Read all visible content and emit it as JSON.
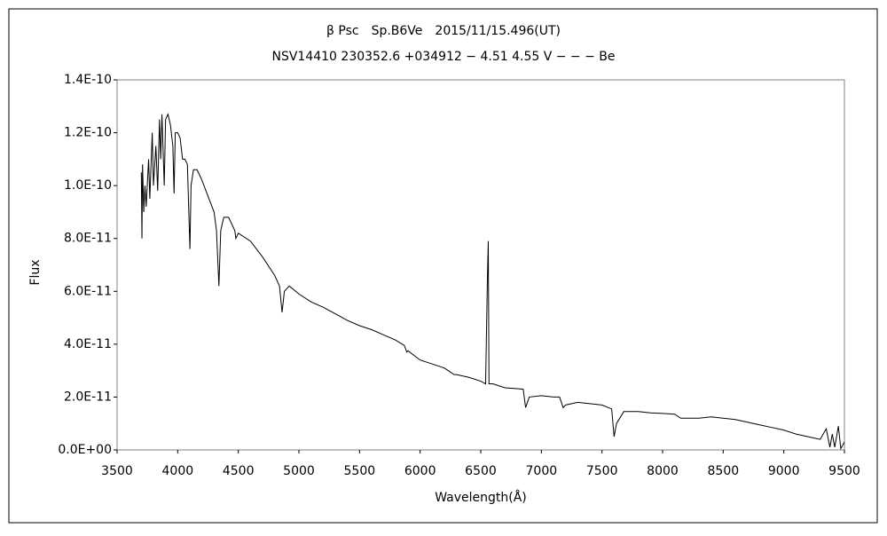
{
  "chart_data": {
    "type": "line",
    "title": "β Psc　Sp.B6Ve　2015/11/15.496(UT)",
    "subtitle": "NSV14410 230352.6 +034912 − 4.51 4.55 V − − − Be",
    "x_label": "Wavelength(Å)",
    "y_label": "Flux",
    "color": "#000000",
    "x": [
      3700,
      3705,
      3710,
      3720,
      3730,
      3740,
      3760,
      3770,
      3790,
      3800,
      3820,
      3835,
      3850,
      3860,
      3870,
      3889,
      3900,
      3920,
      3940,
      3960,
      3970,
      3980,
      4000,
      4020,
      4040,
      4060,
      4080,
      4101,
      4110,
      4130,
      4160,
      4200,
      4250,
      4300,
      4320,
      4340,
      4355,
      4380,
      4420,
      4471,
      4480,
      4500,
      4600,
      4700,
      4800,
      4840,
      4861,
      4880,
      4920,
      5000,
      5100,
      5200,
      5300,
      5400,
      5500,
      5600,
      5700,
      5800,
      5870,
      5890,
      5900,
      6000,
      6100,
      6200,
      6280,
      6300,
      6400,
      6500,
      6540,
      6555,
      6562,
      6568,
      6600,
      6700,
      6850,
      6870,
      6900,
      7000,
      7100,
      7150,
      7180,
      7200,
      7300,
      7400,
      7500,
      7580,
      7600,
      7620,
      7680,
      7800,
      7900,
      8000,
      8100,
      8150,
      8200,
      8300,
      8400,
      8500,
      8600,
      8700,
      8800,
      8900,
      9000,
      9100,
      9200,
      9300,
      9350,
      9380,
      9400,
      9420,
      9450,
      9470,
      9500
    ],
    "values": [
      1.05e-10,
      8e-11,
      1.08e-10,
      9e-11,
      1e-10,
      9.2e-11,
      1.1e-10,
      9.5e-11,
      1.2e-10,
      1e-10,
      1.15e-10,
      9.8e-11,
      1.25e-10,
      1.1e-10,
      1.27e-10,
      1e-10,
      1.25e-10,
      1.27e-10,
      1.23e-10,
      1.15e-10,
      9.7e-11,
      1.2e-10,
      1.2e-10,
      1.18e-10,
      1.1e-10,
      1.1e-10,
      1.08e-10,
      7.6e-11,
      1e-10,
      1.06e-10,
      1.06e-10,
      1.02e-10,
      9.6e-11,
      9e-11,
      8.3e-11,
      6.2e-11,
      8.3e-11,
      8.8e-11,
      8.8e-11,
      8.3e-11,
      8e-11,
      8.2e-11,
      7.9e-11,
      7.3e-11,
      6.6e-11,
      6.2e-11,
      5.2e-11,
      6e-11,
      6.2e-11,
      5.9e-11,
      5.6e-11,
      5.4e-11,
      5.15e-11,
      4.9e-11,
      4.7e-11,
      4.55e-11,
      4.35e-11,
      4.15e-11,
      3.95e-11,
      3.7e-11,
      3.75e-11,
      3.4e-11,
      3.25e-11,
      3.1e-11,
      2.85e-11,
      2.85e-11,
      2.75e-11,
      2.6e-11,
      2.5e-11,
      6.5e-11,
      7.9e-11,
      2.5e-11,
      2.5e-11,
      2.35e-11,
      2.3e-11,
      1.6e-11,
      2e-11,
      2.05e-11,
      2e-11,
      2e-11,
      1.6e-11,
      1.7e-11,
      1.8e-11,
      1.75e-11,
      1.7e-11,
      1.55e-11,
      5e-12,
      1e-11,
      1.45e-11,
      1.45e-11,
      1.4e-11,
      1.38e-11,
      1.35e-11,
      1.2e-11,
      1.2e-11,
      1.2e-11,
      1.25e-11,
      1.2e-11,
      1.15e-11,
      1.05e-11,
      9.5e-12,
      8.5e-12,
      7.5e-12,
      6e-12,
      5e-12,
      4e-12,
      8e-12,
      1e-12,
      6e-12,
      1e-12,
      9e-12,
      5e-13,
      3e-12
    ],
    "xlim": [
      3500,
      9500
    ],
    "xticks": [
      3500,
      4000,
      4500,
      5000,
      5500,
      6000,
      6500,
      7000,
      7500,
      8000,
      8500,
      9000,
      9500
    ],
    "ylim": [
      0,
      1.4e-10
    ],
    "yticks": [
      {
        "value": 0,
        "label": "0.0E+00"
      },
      {
        "value": 2e-11,
        "label": "2.0E-11"
      },
      {
        "value": 4e-11,
        "label": "4.0E-11"
      },
      {
        "value": 6e-11,
        "label": "6.0E-11"
      },
      {
        "value": 8e-11,
        "label": "8.0E-11"
      },
      {
        "value": 1e-10,
        "label": "1.0E-10"
      },
      {
        "value": 1.2e-10,
        "label": "1.2E-10"
      },
      {
        "value": 1.4e-10,
        "label": "1.4E-10"
      }
    ]
  }
}
